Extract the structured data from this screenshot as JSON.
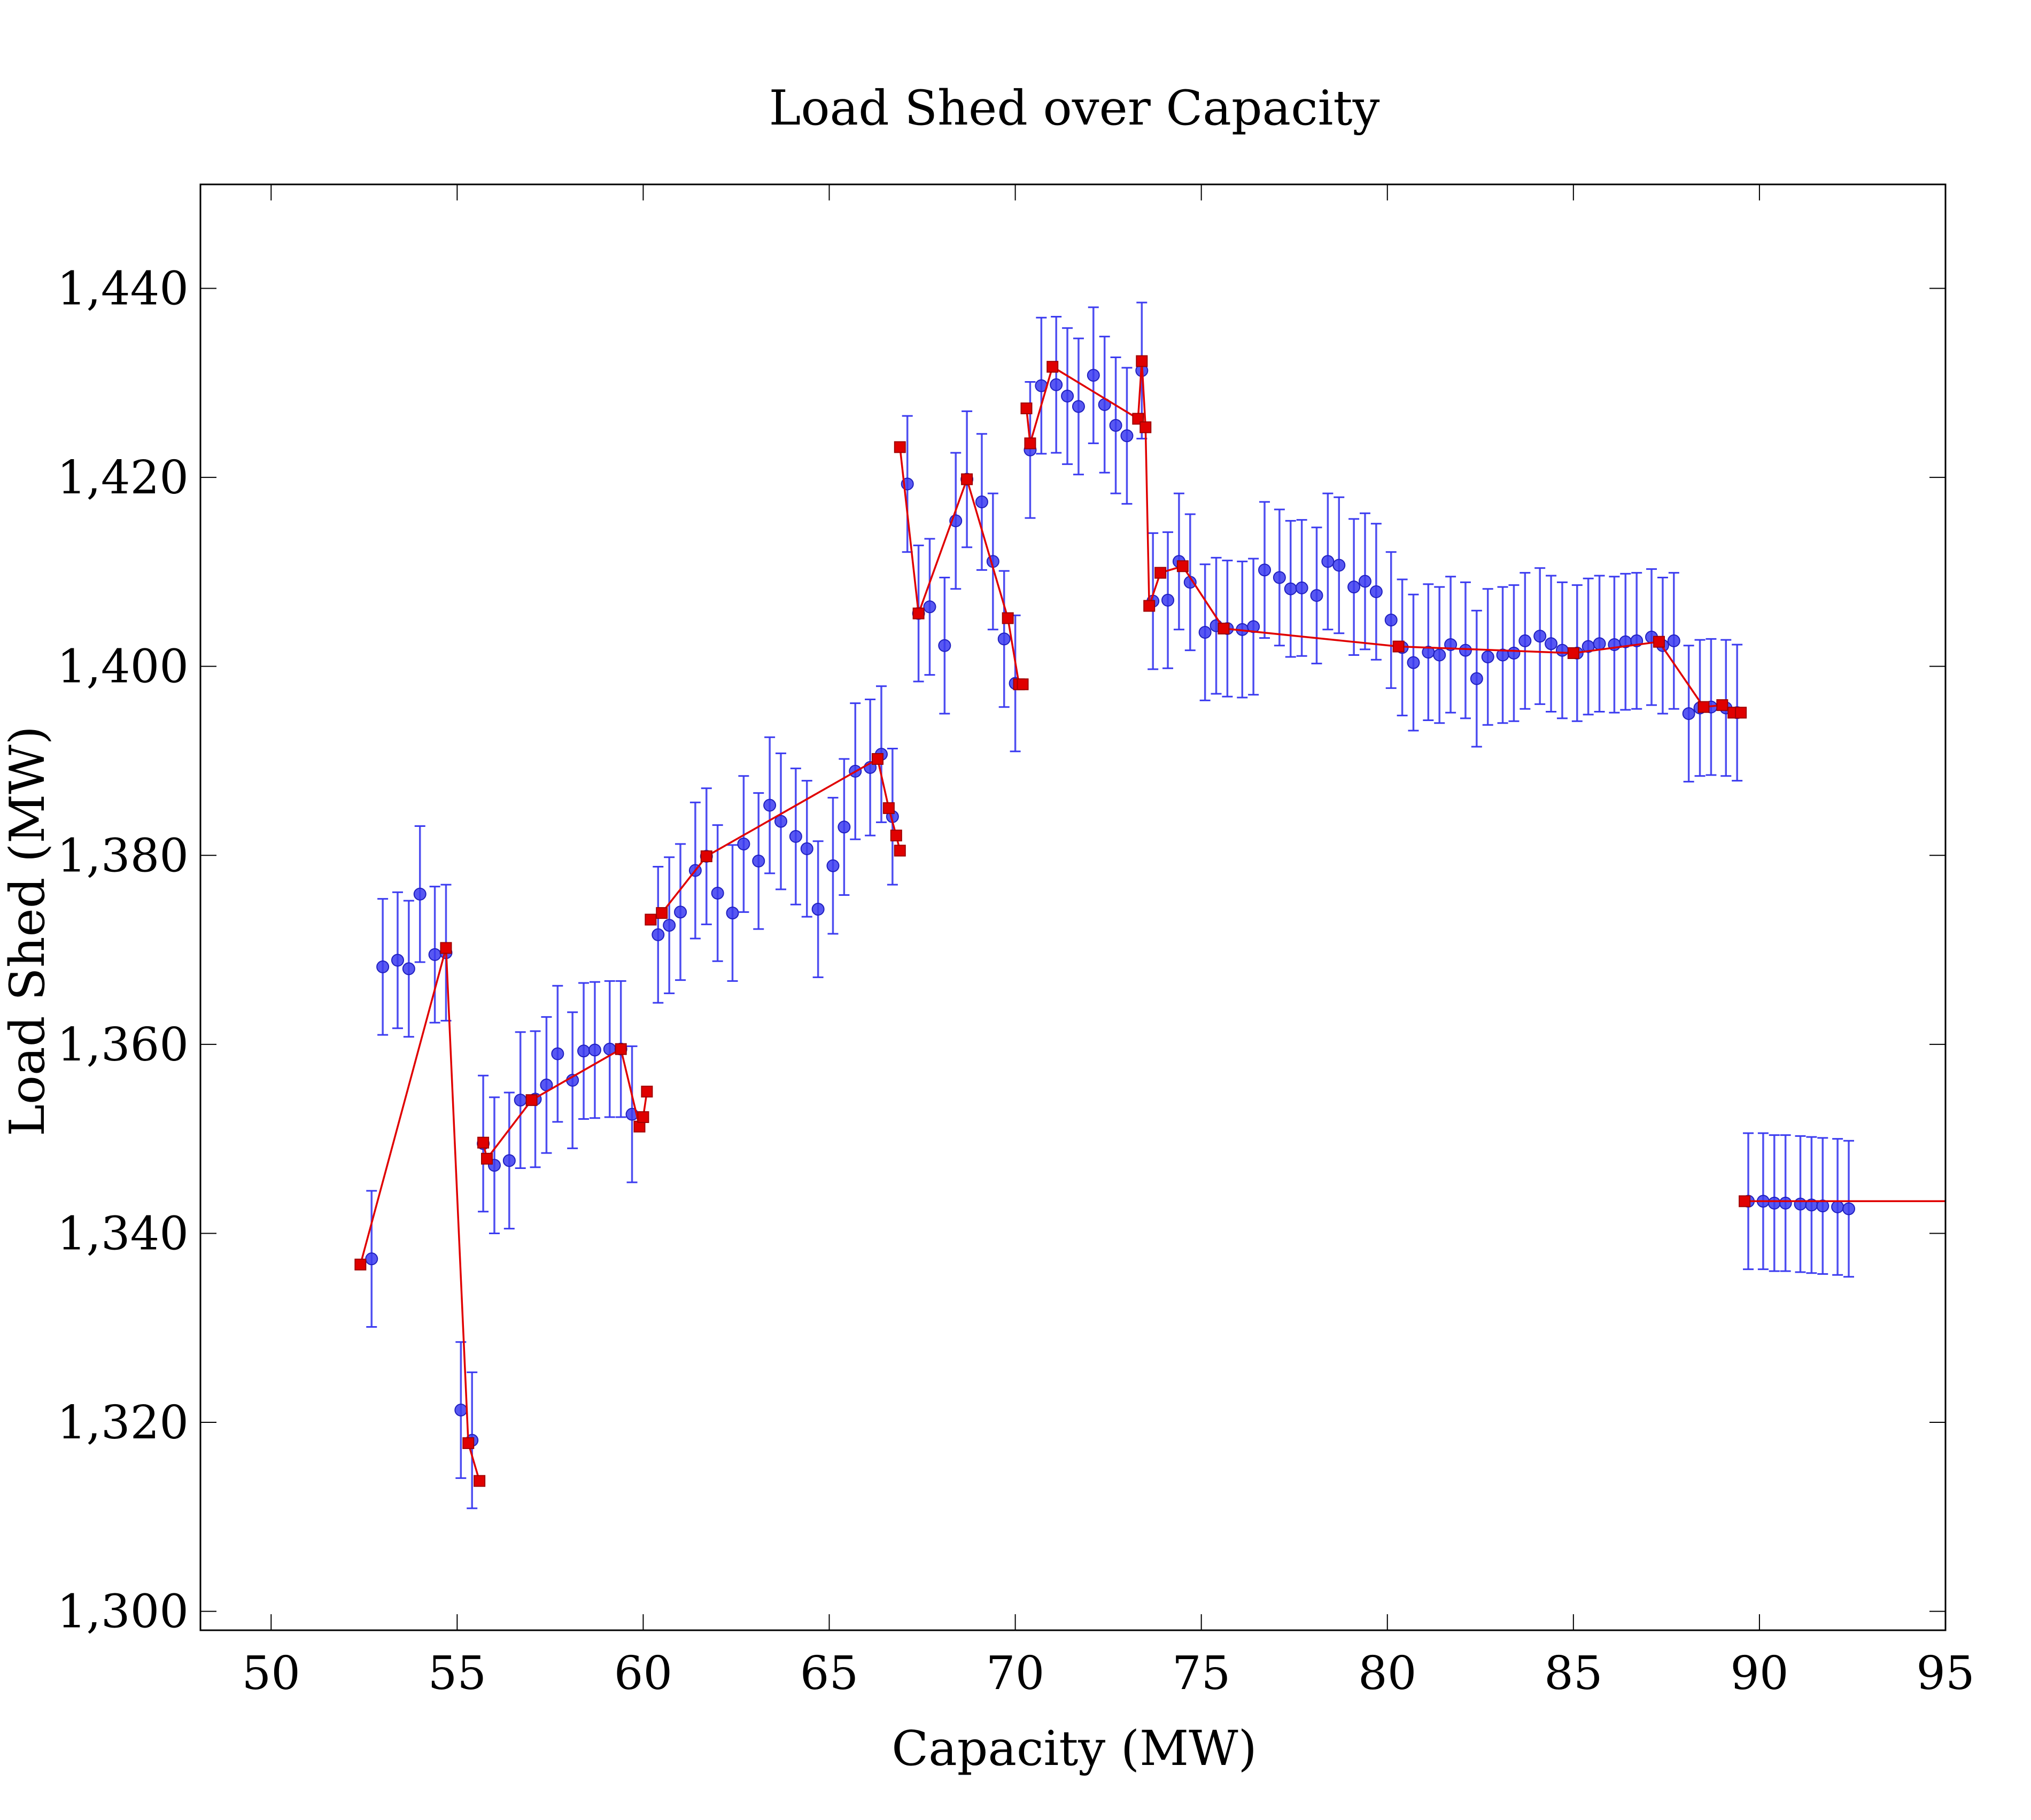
{
  "chart_data": {
    "type": "scatter",
    "title": "Load Shed over Capacity",
    "xlabel": "Capacity (MW)",
    "ylabel": "Load Shed (MW)",
    "xlim": [
      48.1,
      95
    ],
    "ylim": [
      1298,
      1451
    ],
    "x_ticks": [
      50,
      55,
      60,
      65,
      70,
      75,
      80,
      85,
      90,
      95
    ],
    "y_ticks": [
      1300,
      1320,
      1340,
      1360,
      1380,
      1400,
      1420,
      1440
    ],
    "x_tick_labels": [
      "50",
      "55",
      "60",
      "65",
      "70",
      "75",
      "80",
      "85",
      "90",
      "95"
    ],
    "y_tick_labels": [
      "1,300",
      "1,320",
      "1,340",
      "1,360",
      "1,380",
      "1,400",
      "1,420",
      "1,440"
    ],
    "grid": false,
    "legend": "none",
    "colors": {
      "measured": "#3b3bf0",
      "model": "#e00000"
    },
    "series": [
      {
        "kind": "points-with-error-bars",
        "error": 7.2,
        "points": [
          [
            52.7,
            1337.3
          ],
          [
            53.0,
            1368.2
          ],
          [
            53.4,
            1368.9
          ],
          [
            53.7,
            1368.0
          ],
          [
            54.0,
            1375.9
          ],
          [
            54.4,
            1369.5
          ],
          [
            54.7,
            1369.7
          ],
          [
            55.1,
            1321.3
          ],
          [
            55.4,
            1318.1
          ],
          [
            55.7,
            1349.5
          ],
          [
            56.0,
            1347.2
          ],
          [
            56.4,
            1347.7
          ],
          [
            56.7,
            1354.1
          ],
          [
            57.1,
            1354.2
          ],
          [
            57.4,
            1355.7
          ],
          [
            57.7,
            1359.0
          ],
          [
            58.1,
            1356.2
          ],
          [
            58.4,
            1359.3
          ],
          [
            58.7,
            1359.4
          ],
          [
            59.1,
            1359.5
          ],
          [
            59.4,
            1359.5
          ],
          [
            59.7,
            1352.6
          ],
          [
            60.4,
            1371.6
          ],
          [
            60.7,
            1372.6
          ],
          [
            61.0,
            1374.0
          ],
          [
            61.4,
            1378.4
          ],
          [
            61.7,
            1379.9
          ],
          [
            62.0,
            1376.0
          ],
          [
            62.4,
            1373.9
          ],
          [
            62.7,
            1381.2
          ],
          [
            63.1,
            1379.4
          ],
          [
            63.4,
            1385.3
          ],
          [
            63.7,
            1383.6
          ],
          [
            64.1,
            1382.0
          ],
          [
            64.4,
            1380.7
          ],
          [
            64.7,
            1374.3
          ],
          [
            65.1,
            1378.9
          ],
          [
            65.4,
            1383.0
          ],
          [
            65.7,
            1388.9
          ],
          [
            66.1,
            1389.3
          ],
          [
            66.4,
            1390.7
          ],
          [
            66.7,
            1384.1
          ],
          [
            67.1,
            1419.3
          ],
          [
            67.4,
            1405.6
          ],
          [
            67.7,
            1406.3
          ],
          [
            68.1,
            1402.2
          ],
          [
            68.4,
            1415.4
          ],
          [
            68.7,
            1419.8
          ],
          [
            69.1,
            1417.4
          ],
          [
            69.4,
            1411.1
          ],
          [
            69.7,
            1402.9
          ],
          [
            70.0,
            1398.2
          ],
          [
            70.4,
            1422.9
          ],
          [
            70.7,
            1429.7
          ],
          [
            71.1,
            1429.8
          ],
          [
            71.4,
            1428.6
          ],
          [
            71.7,
            1427.5
          ],
          [
            72.1,
            1430.8
          ],
          [
            72.4,
            1427.7
          ],
          [
            72.7,
            1425.5
          ],
          [
            73.0,
            1424.4
          ],
          [
            73.4,
            1431.3
          ],
          [
            73.7,
            1406.9
          ],
          [
            74.1,
            1407.0
          ],
          [
            74.4,
            1411.1
          ],
          [
            74.7,
            1408.9
          ],
          [
            75.1,
            1403.6
          ],
          [
            75.4,
            1404.3
          ],
          [
            75.7,
            1404.0
          ],
          [
            76.1,
            1403.9
          ],
          [
            76.4,
            1404.2
          ],
          [
            76.7,
            1410.2
          ],
          [
            77.1,
            1409.4
          ],
          [
            77.4,
            1408.2
          ],
          [
            77.7,
            1408.3
          ],
          [
            78.1,
            1407.5
          ],
          [
            78.4,
            1411.1
          ],
          [
            78.7,
            1410.7
          ],
          [
            79.1,
            1408.4
          ],
          [
            79.4,
            1409.0
          ],
          [
            79.7,
            1407.9
          ],
          [
            80.1,
            1404.9
          ],
          [
            80.4,
            1402.0
          ],
          [
            80.7,
            1400.4
          ],
          [
            81.1,
            1401.5
          ],
          [
            81.4,
            1401.2
          ],
          [
            81.7,
            1402.3
          ],
          [
            82.1,
            1401.7
          ],
          [
            82.4,
            1398.7
          ],
          [
            82.7,
            1401.0
          ],
          [
            83.1,
            1401.2
          ],
          [
            83.4,
            1401.4
          ],
          [
            83.7,
            1402.7
          ],
          [
            84.1,
            1403.2
          ],
          [
            84.4,
            1402.4
          ],
          [
            84.7,
            1401.7
          ],
          [
            85.1,
            1401.4
          ],
          [
            85.4,
            1402.1
          ],
          [
            85.7,
            1402.4
          ],
          [
            86.1,
            1402.3
          ],
          [
            86.4,
            1402.6
          ],
          [
            86.7,
            1402.7
          ],
          [
            87.1,
            1403.1
          ],
          [
            87.4,
            1402.2
          ],
          [
            87.7,
            1402.7
          ],
          [
            88.1,
            1395.0
          ],
          [
            88.4,
            1395.6
          ],
          [
            88.7,
            1395.7
          ],
          [
            89.1,
            1395.6
          ],
          [
            89.4,
            1395.1
          ],
          [
            89.7,
            1343.4
          ],
          [
            90.1,
            1343.4
          ],
          [
            90.4,
            1343.2
          ],
          [
            90.7,
            1343.2
          ],
          [
            91.1,
            1343.1
          ],
          [
            91.4,
            1343.0
          ],
          [
            91.7,
            1342.9
          ],
          [
            92.1,
            1342.8
          ],
          [
            92.4,
            1342.6
          ]
        ]
      },
      {
        "kind": "line-with-square-markers",
        "segments": [
          [
            [
              52.4,
              1336.7
            ],
            [
              54.7,
              1370.2
            ],
            [
              55.3,
              1317.8
            ],
            [
              55.6,
              1313.8
            ]
          ],
          [
            [
              55.7,
              1349.6
            ],
            [
              55.8,
              1347.9
            ],
            [
              57.0,
              1354.1
            ],
            [
              59.4,
              1359.5
            ],
            [
              59.9,
              1351.3
            ],
            [
              60.0,
              1352.3
            ],
            [
              60.1,
              1355.0
            ]
          ],
          [
            [
              60.2,
              1373.2
            ],
            [
              60.5,
              1373.9
            ],
            [
              61.7,
              1379.9
            ],
            [
              66.3,
              1390.2
            ],
            [
              66.6,
              1385.0
            ],
            [
              66.8,
              1382.1
            ],
            [
              66.9,
              1380.5
            ]
          ],
          [
            [
              66.9,
              1423.2
            ],
            [
              67.4,
              1405.6
            ],
            [
              68.7,
              1419.8
            ],
            [
              69.8,
              1405.1
            ],
            [
              70.1,
              1398.1
            ],
            [
              70.2,
              1398.1
            ]
          ],
          [
            [
              70.3,
              1427.3
            ],
            [
              70.4,
              1423.6
            ],
            [
              71.0,
              1431.7
            ],
            [
              73.3,
              1426.2
            ],
            [
              73.4,
              1432.3
            ],
            [
              73.5,
              1425.3
            ],
            [
              73.6,
              1406.4
            ],
            [
              73.9,
              1409.9
            ],
            [
              74.5,
              1410.6
            ],
            [
              75.6,
              1404.0
            ],
            [
              80.3,
              1402.1
            ],
            [
              85.0,
              1401.4
            ],
            [
              87.3,
              1402.6
            ],
            [
              88.5,
              1395.7
            ],
            [
              89.0,
              1395.9
            ],
            [
              89.3,
              1395.1
            ],
            [
              89.5,
              1395.1
            ]
          ],
          [
            [
              89.6,
              1343.4
            ],
            [
              95.0,
              1343.4
            ]
          ]
        ],
        "markers": [
          [
            52.4,
            1336.7
          ],
          [
            54.7,
            1370.2
          ],
          [
            55.3,
            1317.8
          ],
          [
            55.6,
            1313.8
          ],
          [
            55.7,
            1349.6
          ],
          [
            55.8,
            1347.9
          ],
          [
            57.0,
            1354.1
          ],
          [
            59.4,
            1359.5
          ],
          [
            59.9,
            1351.3
          ],
          [
            60.0,
            1352.3
          ],
          [
            60.1,
            1355.0
          ],
          [
            60.2,
            1373.2
          ],
          [
            60.5,
            1373.9
          ],
          [
            61.7,
            1379.9
          ],
          [
            66.3,
            1390.2
          ],
          [
            66.6,
            1385.0
          ],
          [
            66.8,
            1382.1
          ],
          [
            66.9,
            1380.5
          ],
          [
            66.9,
            1423.2
          ],
          [
            67.4,
            1405.6
          ],
          [
            68.7,
            1419.8
          ],
          [
            69.8,
            1405.1
          ],
          [
            70.1,
            1398.1
          ],
          [
            70.2,
            1398.1
          ],
          [
            70.3,
            1427.3
          ],
          [
            70.4,
            1423.6
          ],
          [
            71.0,
            1431.7
          ],
          [
            73.3,
            1426.2
          ],
          [
            73.4,
            1432.3
          ],
          [
            73.5,
            1425.3
          ],
          [
            73.6,
            1406.4
          ],
          [
            73.9,
            1409.9
          ],
          [
            74.5,
            1410.6
          ],
          [
            75.6,
            1404.0
          ],
          [
            80.3,
            1402.1
          ],
          [
            85.0,
            1401.4
          ],
          [
            87.3,
            1402.6
          ],
          [
            88.5,
            1395.7
          ],
          [
            89.0,
            1395.9
          ],
          [
            89.3,
            1395.1
          ],
          [
            89.5,
            1395.1
          ],
          [
            89.6,
            1343.4
          ]
        ]
      }
    ]
  }
}
